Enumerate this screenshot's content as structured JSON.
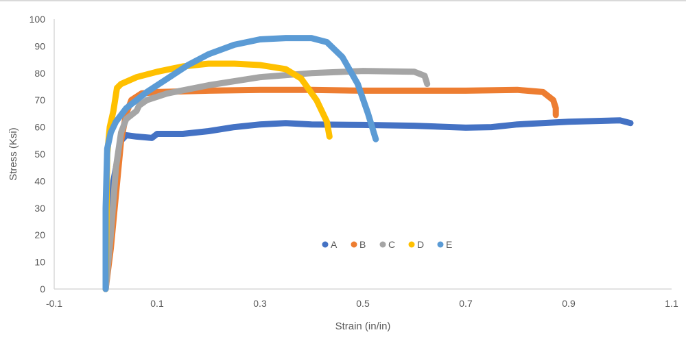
{
  "chart_data": {
    "type": "scatter",
    "title": "",
    "xlabel": "Strain (in/in)",
    "ylabel": "Stress (Ksi)",
    "xlim": [
      -0.1,
      1.1
    ],
    "ylim": [
      0,
      100
    ],
    "x_ticks": [
      "-0.1",
      "0.1",
      "0.3",
      "0.5",
      "0.7",
      "0.9",
      "1.1"
    ],
    "y_ticks": [
      "0",
      "10",
      "20",
      "30",
      "40",
      "50",
      "60",
      "70",
      "80",
      "90",
      "100"
    ],
    "grid": false,
    "legend_position": "inside-bottom-center",
    "series": [
      {
        "name": "A",
        "color": "#4472C4",
        "points": [
          [
            0,
            0
          ],
          [
            0.015,
            40
          ],
          [
            0.03,
            55
          ],
          [
            0.04,
            57
          ],
          [
            0.06,
            56.5
          ],
          [
            0.09,
            56
          ],
          [
            0.1,
            57.5
          ],
          [
            0.15,
            57.5
          ],
          [
            0.2,
            58.5
          ],
          [
            0.25,
            60
          ],
          [
            0.3,
            61
          ],
          [
            0.35,
            61.5
          ],
          [
            0.4,
            61
          ],
          [
            0.5,
            60.8
          ],
          [
            0.6,
            60.5
          ],
          [
            0.7,
            59.8
          ],
          [
            0.75,
            60
          ],
          [
            0.8,
            61
          ],
          [
            0.9,
            62
          ],
          [
            1.0,
            62.5
          ],
          [
            1.02,
            61.5
          ]
        ]
      },
      {
        "name": "B",
        "color": "#ED7D31",
        "points": [
          [
            0,
            0
          ],
          [
            0.01,
            15
          ],
          [
            0.02,
            35
          ],
          [
            0.03,
            55
          ],
          [
            0.04,
            65
          ],
          [
            0.05,
            70
          ],
          [
            0.07,
            72.5
          ],
          [
            0.1,
            73
          ],
          [
            0.2,
            73.5
          ],
          [
            0.3,
            73.8
          ],
          [
            0.4,
            73.8
          ],
          [
            0.5,
            73.5
          ],
          [
            0.6,
            73.5
          ],
          [
            0.7,
            73.5
          ],
          [
            0.8,
            73.8
          ],
          [
            0.85,
            73
          ],
          [
            0.87,
            70
          ],
          [
            0.875,
            67
          ],
          [
            0.875,
            64.5
          ]
        ]
      },
      {
        "name": "C",
        "color": "#A5A5A5",
        "points": [
          [
            0,
            0
          ],
          [
            0.01,
            20
          ],
          [
            0.02,
            45
          ],
          [
            0.03,
            58
          ],
          [
            0.04,
            63
          ],
          [
            0.06,
            66
          ],
          [
            0.065,
            68
          ],
          [
            0.08,
            70
          ],
          [
            0.12,
            72.5
          ],
          [
            0.2,
            75.5
          ],
          [
            0.3,
            78.5
          ],
          [
            0.4,
            80
          ],
          [
            0.5,
            80.8
          ],
          [
            0.6,
            80.5
          ],
          [
            0.62,
            79
          ],
          [
            0.625,
            76
          ]
        ]
      },
      {
        "name": "D",
        "color": "#FFC000",
        "points": [
          [
            0,
            0
          ],
          [
            0.003,
            50
          ],
          [
            0.008,
            60
          ],
          [
            0.015,
            66
          ],
          [
            0.02,
            72
          ],
          [
            0.022,
            74.5
          ],
          [
            0.03,
            76
          ],
          [
            0.06,
            78.5
          ],
          [
            0.1,
            80.5
          ],
          [
            0.15,
            82.5
          ],
          [
            0.2,
            83.5
          ],
          [
            0.25,
            83.5
          ],
          [
            0.3,
            83
          ],
          [
            0.35,
            81.5
          ],
          [
            0.38,
            78
          ],
          [
            0.41,
            70
          ],
          [
            0.43,
            62
          ],
          [
            0.435,
            56.5
          ]
        ]
      },
      {
        "name": "E",
        "color": "#5B9BD5",
        "points": [
          [
            0,
            0
          ],
          [
            0.0,
            30
          ],
          [
            0.003,
            52
          ],
          [
            0.01,
            58
          ],
          [
            0.02,
            62
          ],
          [
            0.04,
            67
          ],
          [
            0.08,
            73
          ],
          [
            0.12,
            78
          ],
          [
            0.16,
            83
          ],
          [
            0.2,
            87
          ],
          [
            0.25,
            90.5
          ],
          [
            0.3,
            92.5
          ],
          [
            0.35,
            93
          ],
          [
            0.4,
            93
          ],
          [
            0.43,
            91.5
          ],
          [
            0.46,
            86
          ],
          [
            0.49,
            76
          ],
          [
            0.51,
            65
          ],
          [
            0.525,
            55.5
          ]
        ]
      }
    ]
  }
}
